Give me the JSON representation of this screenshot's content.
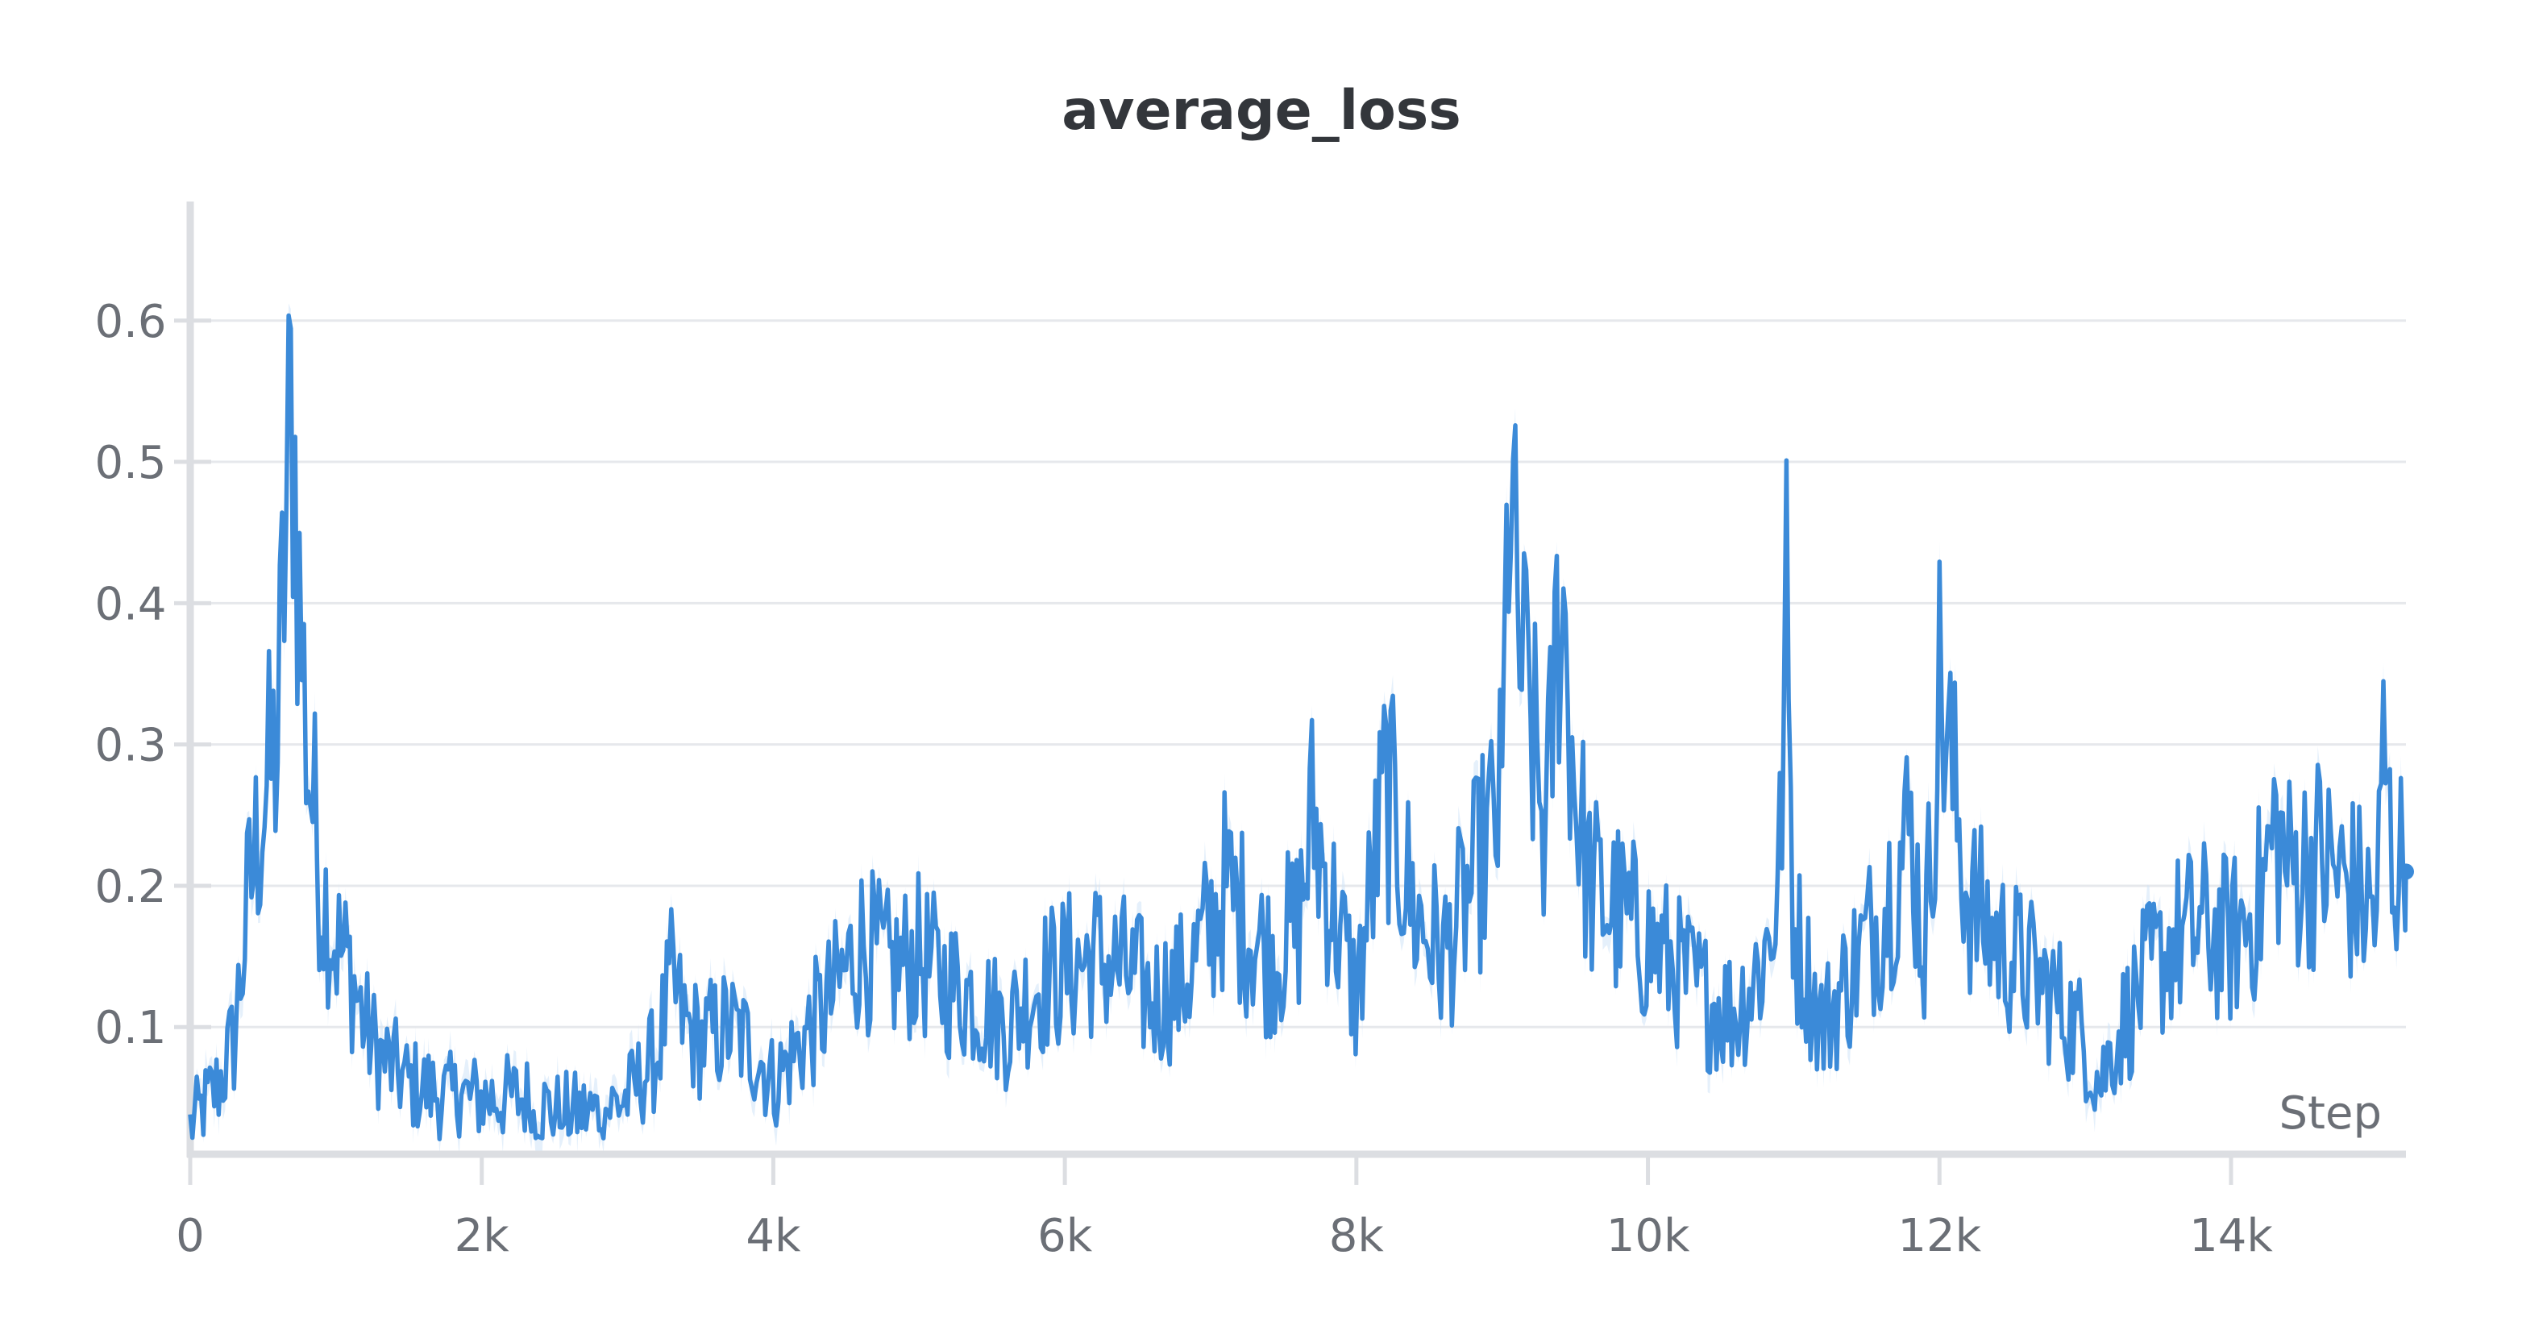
{
  "chart_data": {
    "type": "line",
    "title": "average_loss",
    "xlabel": "Step",
    "ylabel": "",
    "xlim": [
      0,
      15200
    ],
    "ylim": [
      0.01,
      0.69
    ],
    "x_ticks": [
      0,
      2000,
      4000,
      6000,
      8000,
      10000,
      12000,
      14000
    ],
    "x_tick_labels": [
      "0",
      "2k",
      "4k",
      "6k",
      "8k",
      "10k",
      "12k",
      "14k"
    ],
    "y_ticks": [
      0.1,
      0.2,
      0.3,
      0.4,
      0.5,
      0.6
    ],
    "y_tick_labels": [
      "0.1",
      "0.2",
      "0.3",
      "0.4",
      "0.5",
      "0.6"
    ],
    "grid": true,
    "line_color": "#3b8ad8",
    "band_color": "#cfe3f7",
    "series": [
      {
        "x": [
          0,
          200,
          300,
          400,
          500,
          600,
          650,
          700,
          750,
          800,
          850,
          900,
          1000,
          1100,
          1200,
          1300,
          1500,
          1800,
          2000,
          2300,
          2500,
          2800,
          3000,
          3200,
          3300,
          3400,
          3500,
          3700,
          3900,
          4000,
          4200,
          4400,
          4600,
          4800,
          5000,
          5200,
          5400,
          5600,
          5800,
          6000,
          6200,
          6400,
          6600,
          6800,
          7000,
          7100,
          7200,
          7400,
          7600,
          7700,
          7800,
          8000,
          8200,
          8400,
          8600,
          8800,
          9000,
          9050,
          9100,
          9200,
          9300,
          9400,
          9500,
          9600,
          9800,
          10000,
          10200,
          10400,
          10600,
          10800,
          10900,
          10950,
          11000,
          11200,
          11400,
          11600,
          11800,
          11900,
          12000,
          12200,
          12400,
          12600,
          12800,
          13000,
          13100,
          13200,
          13400,
          13600,
          13800,
          14000,
          14200,
          14300,
          14400,
          14600,
          14800,
          15000,
          15050,
          15100,
          15200
        ],
        "y": [
          0.03,
          0.06,
          0.09,
          0.19,
          0.26,
          0.3,
          0.44,
          0.55,
          0.4,
          0.3,
          0.25,
          0.2,
          0.16,
          0.14,
          0.1,
          0.08,
          0.06,
          0.05,
          0.05,
          0.05,
          0.04,
          0.04,
          0.05,
          0.08,
          0.13,
          0.1,
          0.09,
          0.1,
          0.08,
          0.06,
          0.09,
          0.12,
          0.16,
          0.14,
          0.15,
          0.13,
          0.12,
          0.1,
          0.13,
          0.14,
          0.15,
          0.14,
          0.12,
          0.13,
          0.17,
          0.2,
          0.18,
          0.15,
          0.17,
          0.25,
          0.2,
          0.12,
          0.27,
          0.18,
          0.15,
          0.2,
          0.26,
          0.51,
          0.38,
          0.31,
          0.23,
          0.42,
          0.27,
          0.2,
          0.18,
          0.16,
          0.14,
          0.12,
          0.11,
          0.15,
          0.2,
          0.39,
          0.17,
          0.1,
          0.14,
          0.18,
          0.24,
          0.15,
          0.34,
          0.19,
          0.16,
          0.14,
          0.12,
          0.09,
          0.06,
          0.09,
          0.13,
          0.16,
          0.17,
          0.16,
          0.19,
          0.24,
          0.21,
          0.22,
          0.2,
          0.18,
          0.3,
          0.22,
          0.21
        ]
      }
    ]
  }
}
